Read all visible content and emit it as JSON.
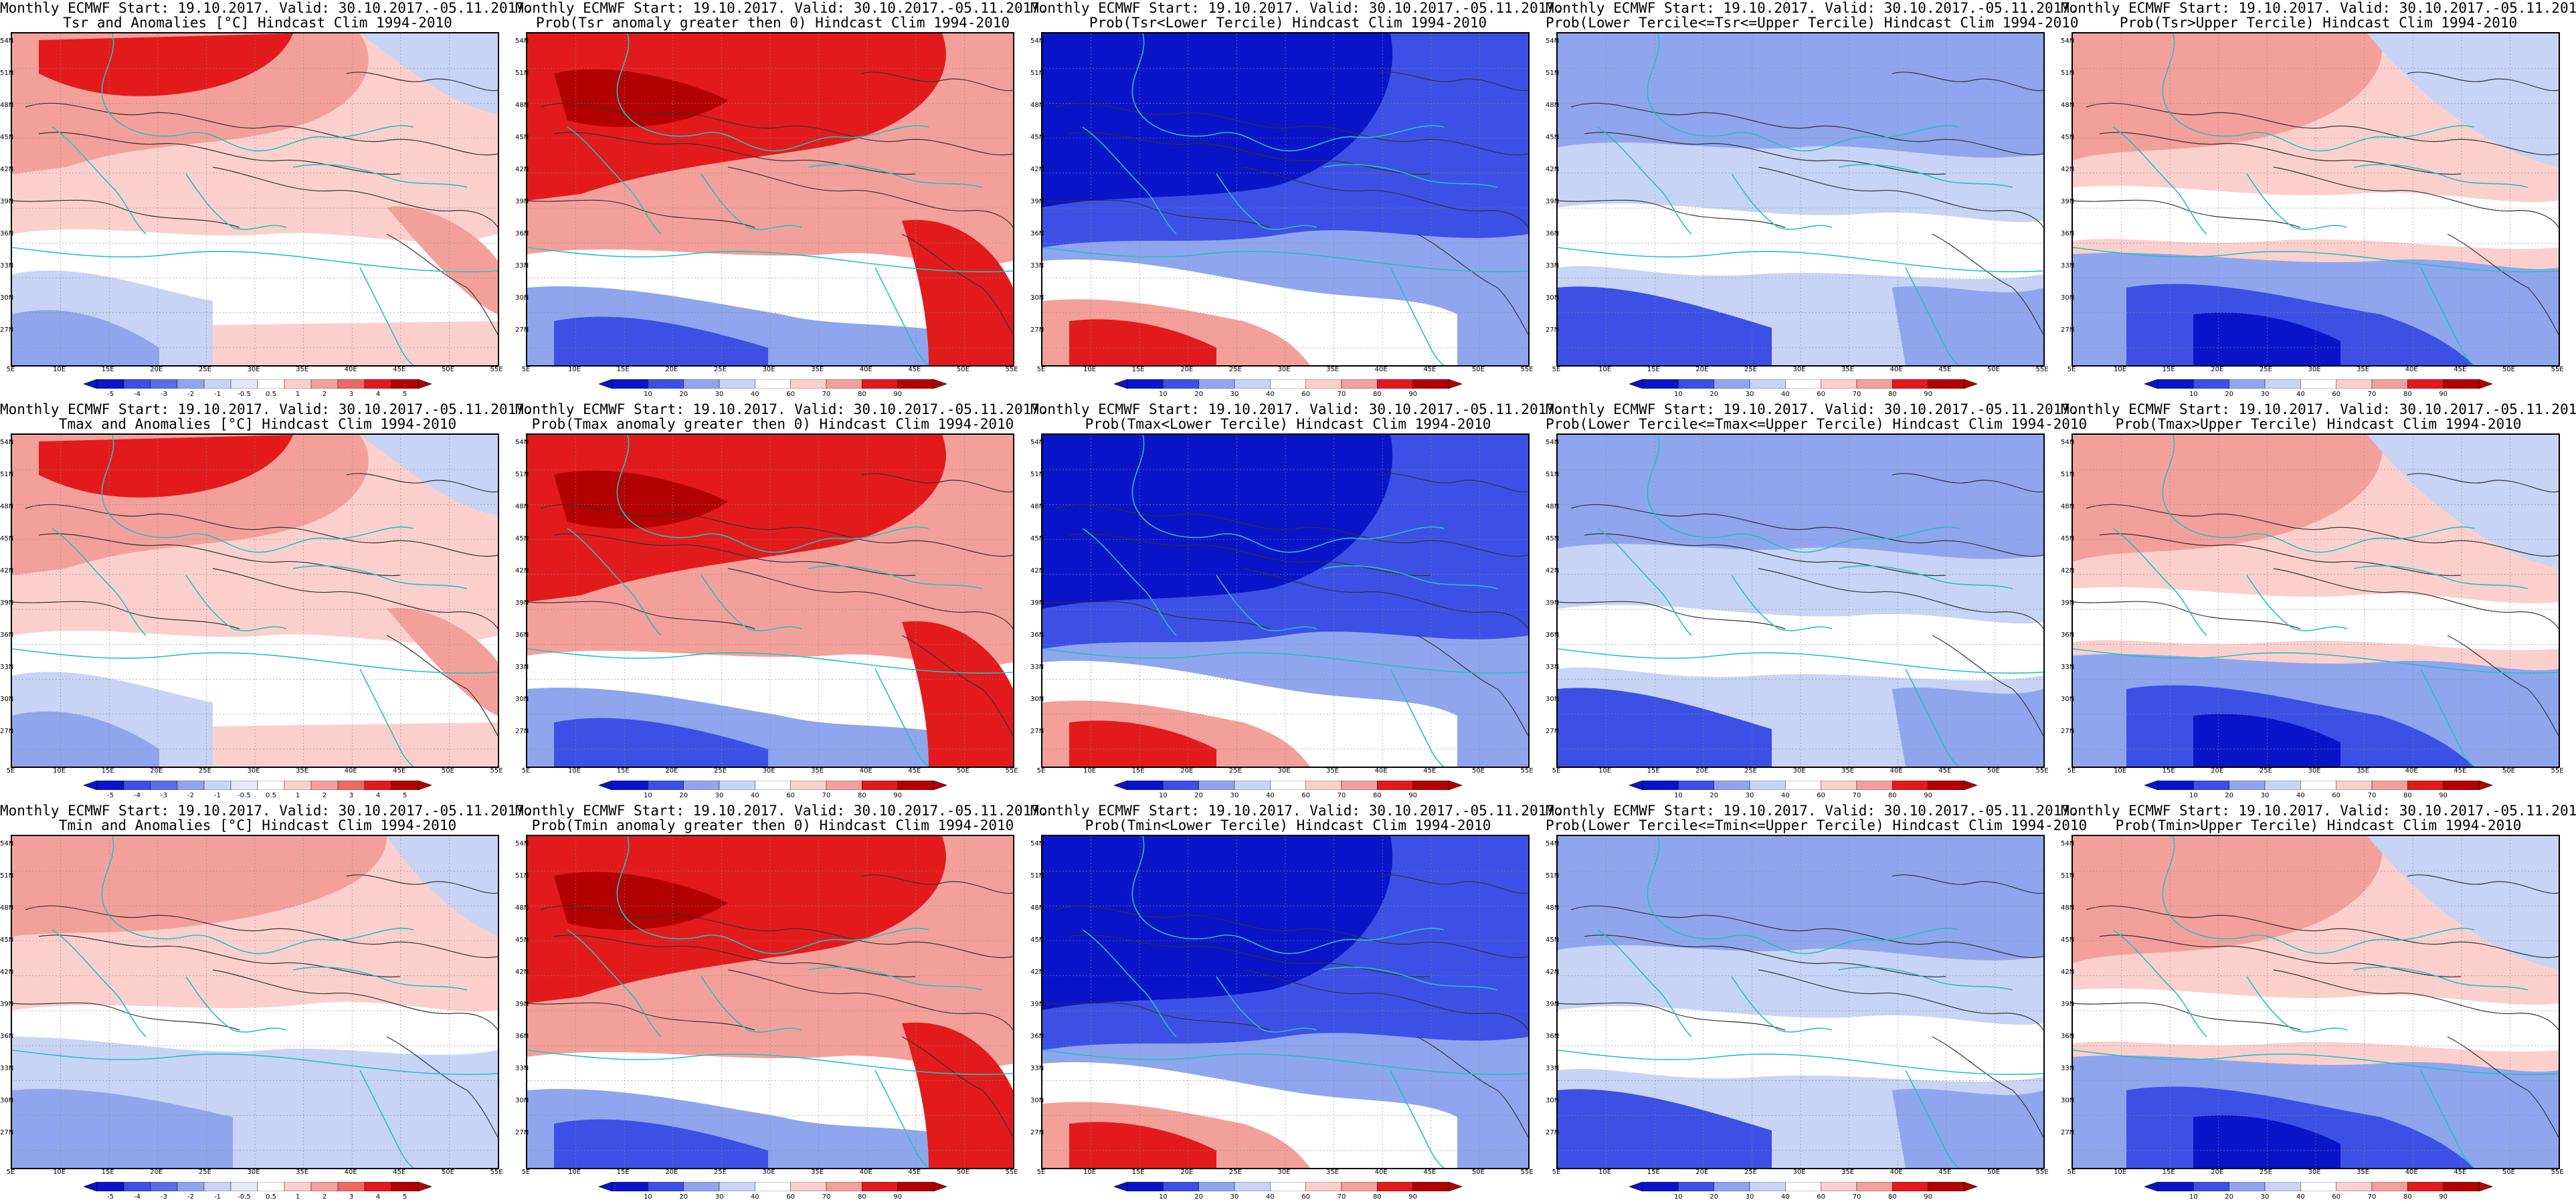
{
  "common": {
    "line1": "Monthly ECMWF Start: 19.10.2017. Valid: 30.10.2017.-05.11.2017.",
    "lat_labels": [
      "54N",
      "51N",
      "48N",
      "45N",
      "42N",
      "39N",
      "36N",
      "33N",
      "30N",
      "27N"
    ],
    "lon_labels": [
      "5E",
      "10E",
      "15E",
      "20E",
      "25E",
      "30E",
      "35E",
      "40E",
      "45E",
      "50E",
      "55E"
    ],
    "anomaly_ticks": [
      "-5",
      "-4",
      "-3",
      "-2",
      "-1",
      "-0.5",
      "0.5",
      "1",
      "2",
      "3",
      "4",
      "5"
    ],
    "prob_ticks": [
      "10",
      "20",
      "30",
      "40",
      "60",
      "70",
      "80",
      "90"
    ],
    "palette": {
      "deep_red": "#b30000",
      "red": "#e31a1c",
      "salmon": "#f4a09a",
      "pale_red": "#fbd0cc",
      "white": "#ffffff",
      "pale_blue": "#c7d4f5",
      "light_blue": "#8fa6ee",
      "blue": "#3c50e6",
      "deep_blue": "#0a14c8",
      "contour": "#333333",
      "coast": "#22c1c3"
    }
  },
  "panels": [
    {
      "line2": "Tsr and Anomalies [°C] Hindcast Clim 1994-2010",
      "scale": "anomaly",
      "pattern": "anomaly_north_warm"
    },
    {
      "line2": "Prob(Tsr anomaly greater then 0) Hindcast Clim 1994-2010",
      "scale": "prob",
      "pattern": "prob_north_high"
    },
    {
      "line2": "Prob(Tsr<Lower Tercile) Hindcast Clim 1994-2010",
      "scale": "prob",
      "pattern": "prob_north_low"
    },
    {
      "line2": "Prob(Lower Tercile<=Tsr<=Upper Tercile) Hindcast Clim 1994-2010",
      "scale": "prob",
      "pattern": "prob_mid"
    },
    {
      "line2": "Prob(Tsr>Upper Tercile) Hindcast Clim 1994-2010",
      "scale": "prob",
      "pattern": "prob_upper"
    },
    {
      "line2": "Tmax and Anomalies [°C] Hindcast Clim 1994-2010",
      "scale": "anomaly",
      "pattern": "anomaly_north_warm"
    },
    {
      "line2": "Prob(Tmax anomaly greater then 0) Hindcast Clim 1994-2010",
      "scale": "prob",
      "pattern": "prob_north_high"
    },
    {
      "line2": "Prob(Tmax<Lower Tercile) Hindcast Clim 1994-2010",
      "scale": "prob",
      "pattern": "prob_north_low"
    },
    {
      "line2": "Prob(Lower Tercile<=Tmax<=Upper Tercile) Hindcast Clim 1994-2010",
      "scale": "prob",
      "pattern": "prob_mid"
    },
    {
      "line2": "Prob(Tmax>Upper Tercile) Hindcast Clim 1994-2010",
      "scale": "prob",
      "pattern": "prob_upper"
    },
    {
      "line2": "Tmin and Anomalies [°C] Hindcast Clim 1994-2010",
      "scale": "anomaly",
      "pattern": "anomaly_south_cool"
    },
    {
      "line2": "Prob(Tmin anomaly greater then 0) Hindcast Clim 1994-2010",
      "scale": "prob",
      "pattern": "prob_north_high"
    },
    {
      "line2": "Prob(Tmin<Lower Tercile) Hindcast Clim 1994-2010",
      "scale": "prob",
      "pattern": "prob_north_low"
    },
    {
      "line2": "Prob(Lower Tercile<=Tmin<=Upper Tercile) Hindcast Clim 1994-2010",
      "scale": "prob",
      "pattern": "prob_mid"
    },
    {
      "line2": "Prob(Tmin>Upper Tercile) Hindcast Clim 1994-2010",
      "scale": "prob",
      "pattern": "prob_upper"
    }
  ]
}
